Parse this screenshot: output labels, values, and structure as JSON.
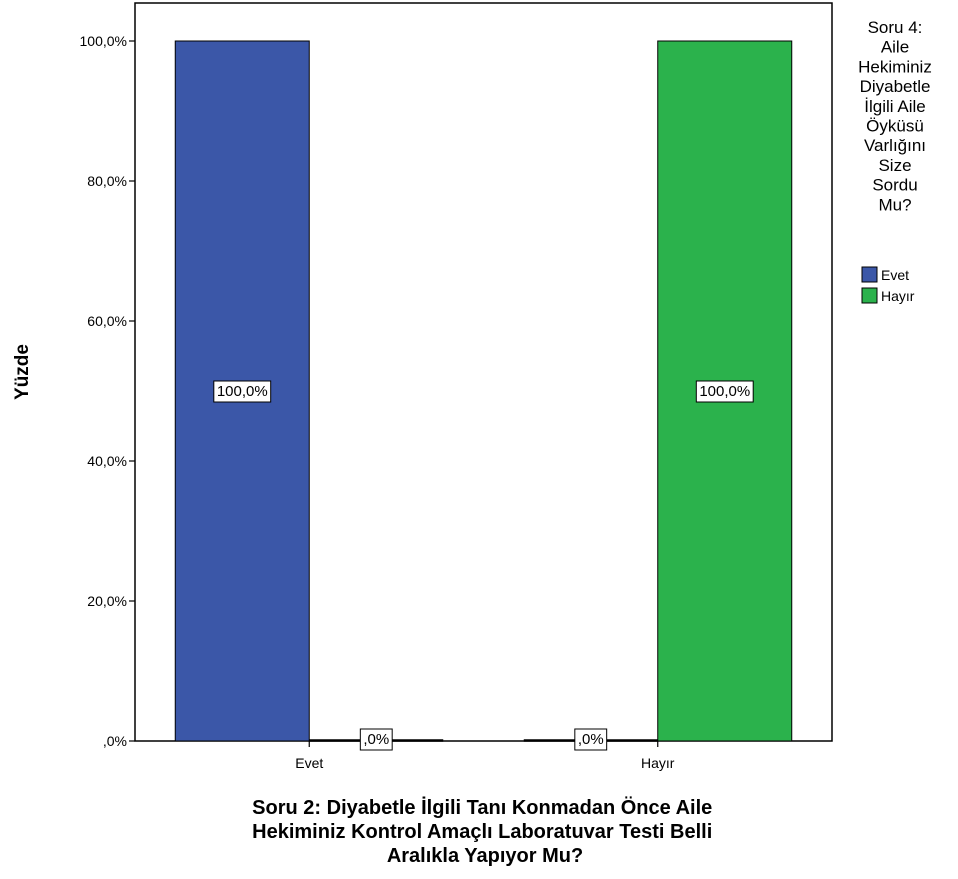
{
  "chart_data": {
    "type": "bar",
    "categories": [
      "Evet",
      "Hayır"
    ],
    "series": [
      {
        "name": "Evet",
        "color": "#3b57a8",
        "values": [
          100.0,
          0.0
        ],
        "labels": [
          "100,0%",
          ",0%"
        ]
      },
      {
        "name": "Hayır",
        "color": "#2bb24c",
        "values": [
          0.0,
          100.0
        ],
        "labels": [
          ",0%",
          "100,0%"
        ]
      }
    ],
    "ylabel": "Yüzde",
    "xlabel_lines": [
      "Soru 2: Diyabetle İlgili Tanı Konmadan Önce Aile",
      "Hekiminiz Kontrol Amaçlı Laboratuvar Testi Belli",
      "Aralıkla Yapıyor Mu?"
    ],
    "ylim": [
      0,
      100
    ],
    "yticks": [
      0,
      20,
      40,
      60,
      80,
      100
    ],
    "ytick_labels": [
      ",0%",
      "20,0%",
      "40,0%",
      "60,0%",
      "80,0%",
      "100,0%"
    ],
    "legend": {
      "placement": "right",
      "title_lines": [
        "Soru 4:",
        "Aile",
        "Hekiminiz",
        "Diyabetle",
        "İlgili Aile",
        "Öyküsü",
        "Varlığını",
        "Size",
        "Sordu",
        "Mu?"
      ],
      "entries": [
        "Evet",
        "Hayır"
      ]
    },
    "grid": false
  }
}
